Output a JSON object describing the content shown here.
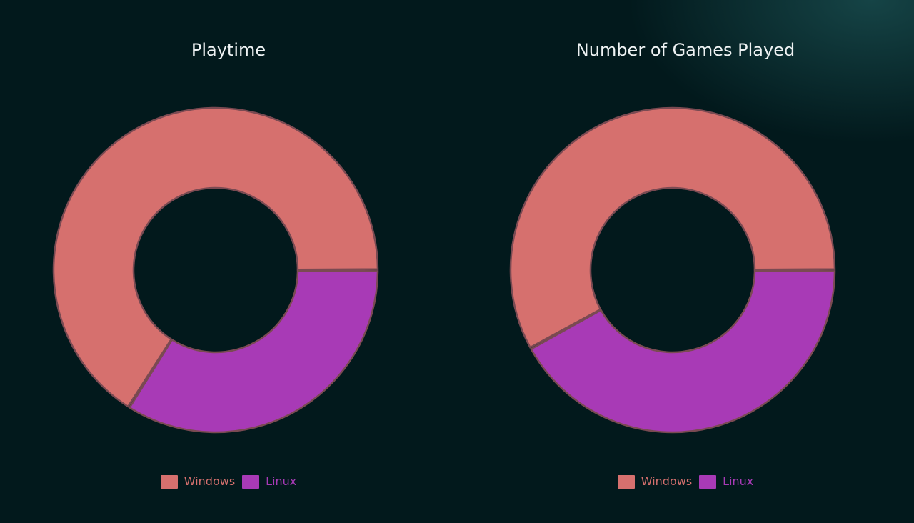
{
  "colors": {
    "background": "#02191c",
    "windows": "#d6706e",
    "linux": "#a83ab6",
    "slice_border": "#7a4a52",
    "title": "#eef2f3"
  },
  "chart_data": [
    {
      "type": "pie",
      "title": "Playtime",
      "categories": [
        "Windows",
        "Linux"
      ],
      "values": [
        66,
        34
      ],
      "colors": [
        "#d6706e",
        "#a83ab6"
      ],
      "legend": "bottom"
    },
    {
      "type": "pie",
      "title": "Number of Games Played",
      "categories": [
        "Windows",
        "Linux"
      ],
      "values": [
        58,
        42
      ],
      "colors": [
        "#d6706e",
        "#a83ab6"
      ],
      "legend": "bottom"
    }
  ]
}
